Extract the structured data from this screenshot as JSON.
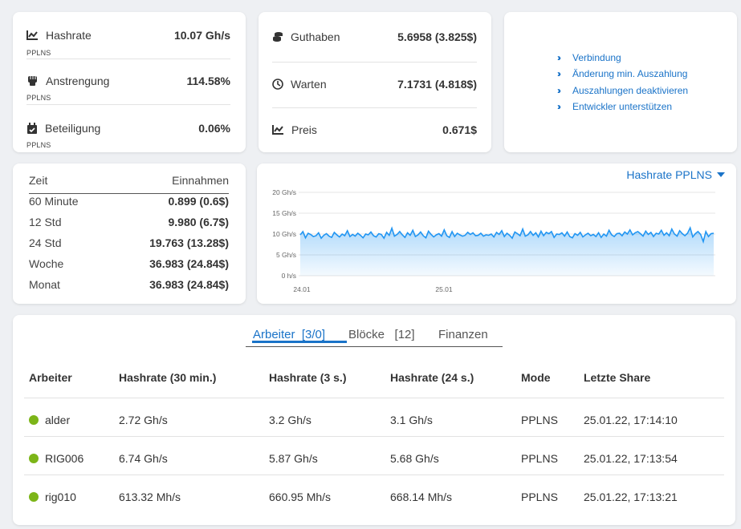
{
  "colors": {
    "accent": "#1a73c8",
    "online": "#7cb518",
    "chart_fill": "#cfe7fb",
    "chart_line": "#2196f3"
  },
  "stats": {
    "hashrate": {
      "icon": "chart-line-icon",
      "label": "Hashrate",
      "value": "10.07 Gh/s",
      "sub": "PPLNS"
    },
    "effort": {
      "icon": "fist-icon",
      "label": "Anstrengung",
      "value": "114.58%",
      "sub": "PPLNS"
    },
    "share": {
      "icon": "calendar-check-icon",
      "label": "Beteiligung",
      "value": "0.06%",
      "sub": "PPLNS"
    }
  },
  "balance": {
    "credit": {
      "icon": "coins-icon",
      "label": "Guthaben",
      "value": "5.6958 (3.825$)"
    },
    "pending": {
      "icon": "clock-icon",
      "label": "Warten",
      "value": "7.1731 (4.818$)"
    },
    "price": {
      "icon": "chart-line-icon",
      "label": "Preis",
      "value": "0.671$"
    }
  },
  "links": [
    {
      "icon": "double-chevron-right-icon",
      "label": "Verbindung"
    },
    {
      "icon": "double-chevron-right-icon",
      "label": "Änderung min. Auszahlung"
    },
    {
      "icon": "double-chevron-right-icon",
      "label": "Auszahlungen deaktivieren"
    },
    {
      "icon": "double-chevron-right-icon",
      "label": "Entwickler unterstützen"
    }
  ],
  "earnings": {
    "header_time": "Zeit",
    "header_income": "Einnahmen",
    "rows": [
      {
        "period": "60 Minute",
        "amount": "0.899 (0.6$)"
      },
      {
        "period": "12 Std",
        "amount": "9.980 (6.7$)"
      },
      {
        "period": "24 Std",
        "amount": "19.763 (13.28$)"
      },
      {
        "period": "Woche",
        "amount": "36.983 (24.84$)"
      },
      {
        "period": "Monat",
        "amount": "36.983 (24.84$)"
      }
    ]
  },
  "chart_data": {
    "type": "area",
    "selector_label": "Hashrate PPLNS",
    "y_ticks": [
      "20 Gh/s",
      "15 Gh/s",
      "10 Gh/s",
      "5 Gh/s",
      "0 h/s"
    ],
    "ylim": [
      0,
      20
    ],
    "x_ticks": [
      "24.01",
      "25.01"
    ],
    "unit": "Gh/s",
    "values": [
      9.8,
      10.6,
      9.1,
      10.2,
      9.9,
      9.4,
      9.6,
      10.3,
      9.0,
      9.7,
      10.1,
      9.5,
      9.2,
      10.4,
      9.8,
      9.3,
      10.0,
      9.6,
      10.8,
      9.4,
      9.9,
      9.5,
      10.2,
      9.7,
      9.1,
      10.0,
      9.8,
      10.5,
      9.6,
      9.3,
      10.1,
      9.9,
      9.0,
      10.4,
      9.7,
      11.4,
      9.5,
      9.9,
      10.6,
      9.8,
      9.2,
      10.3,
      9.7,
      10.9,
      9.4,
      9.8,
      10.5,
      9.6,
      9.1,
      10.7,
      9.9,
      9.3,
      9.8,
      10.1,
      9.5,
      11.0,
      9.6,
      9.2,
      10.6,
      9.4,
      10.2,
      9.8,
      9.5,
      9.7,
      10.4,
      9.9,
      10.3,
      9.6,
      9.7,
      10.2,
      9.5,
      9.8,
      9.7,
      10.0,
      9.3,
      10.4,
      9.9,
      10.8,
      9.4,
      10.2,
      9.7,
      9.0,
      10.5,
      10.1,
      9.6,
      11.2,
      9.5,
      9.8,
      10.6,
      9.7,
      10.3,
      9.3,
      10.7,
      9.6,
      10.4,
      10.1,
      10.6,
      9.2,
      10.0,
      9.9,
      10.3,
      9.5,
      10.5,
      9.4,
      9.1,
      10.1,
      9.7,
      10.4,
      9.3,
      9.8,
      10.2,
      9.6,
      9.9,
      9.4,
      10.3,
      9.2,
      10.0,
      9.5,
      10.9,
      9.8,
      9.4,
      10.1,
      10.2,
      9.6,
      10.5,
      10.0,
      11.0,
      9.8,
      10.3,
      10.6,
      10.1,
      9.5,
      10.7,
      9.9,
      10.4,
      9.4,
      10.2,
      10.0,
      10.9,
      9.7,
      10.3,
      9.6,
      11.2,
      10.0,
      9.5,
      10.8,
      10.1,
      9.6,
      10.2,
      11.5,
      9.3,
      10.1,
      10.6,
      9.9,
      8.2,
      10.6,
      9.4,
      10.1,
      10.2
    ]
  },
  "tabs": [
    {
      "name": "tab-workers",
      "label": "Arbeiter",
      "count": "[3/0]"
    },
    {
      "name": "tab-blocks",
      "label": "Blöcke",
      "count": "[12]"
    },
    {
      "name": "tab-finances",
      "label": "Finanzen",
      "count": ""
    }
  ],
  "workers": {
    "columns": [
      "Arbeiter",
      "Hashrate (30 min.)",
      "Hashrate (3 s.)",
      "Hashrate (24 s.)",
      "Mode",
      "Letzte Share"
    ],
    "rows": [
      {
        "name": "alder",
        "hr30": "2.72 Gh/s",
        "hr3": "3.2 Gh/s",
        "hr24": "3.1 Gh/s",
        "mode": "PPLNS",
        "last": "25.01.22, 17:14:10"
      },
      {
        "name": "RIG006",
        "hr30": "6.74 Gh/s",
        "hr3": "5.87 Gh/s",
        "hr24": "5.68 Gh/s",
        "mode": "PPLNS",
        "last": "25.01.22, 17:13:54"
      },
      {
        "name": "rig010",
        "hr30": "613.32 Mh/s",
        "hr3": "660.95 Mh/s",
        "hr24": "668.14 Mh/s",
        "mode": "PPLNS",
        "last": "25.01.22, 17:13:21"
      }
    ]
  }
}
